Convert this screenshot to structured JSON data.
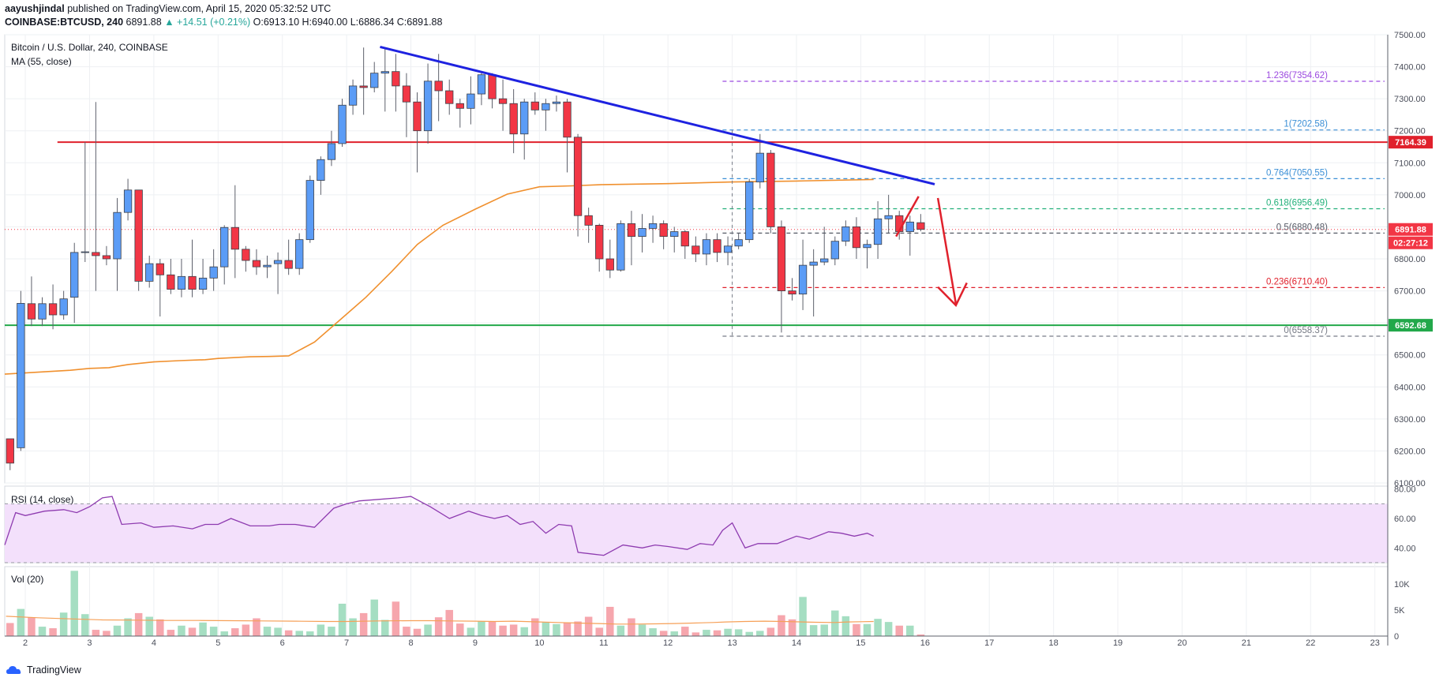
{
  "header": {
    "author": "aayushjindal",
    "published_text": "published on TradingView.com, April 15, 2020 05:32:52 UTC",
    "symbol": "COINBASE:BTCUSD, 240",
    "last": "6891.88",
    "change": "▲ +14.51 (+0.21%)",
    "open": "O:6913.10",
    "high": "H:6940.00",
    "low": "L:6886.34",
    "close": "C:6891.88"
  },
  "footer": {
    "logo_text": "TradingView"
  },
  "colors": {
    "up": "#5b9cf6",
    "down": "#f23645",
    "ma": "#f0902e",
    "trend": "#1e22e0",
    "resistance": "#e0212c",
    "support": "#22a84a",
    "rsi": "#8e3bb0",
    "rsi_band": "#f3e0fb",
    "vol_up": "#a5dec2",
    "vol_down": "#f6a6ad",
    "vol_ma": "#f6a058"
  },
  "chart_data": {
    "type": "candlestick",
    "title": "Bitcoin / U.S. Dollar, 240, COINBASE",
    "ma_label": "MA (55, close)",
    "x_start_day": 1.68,
    "bar_width_days": 0.1667,
    "ylim": [
      6100,
      7500
    ],
    "y_ticks": [
      6100,
      6200,
      6300,
      6400,
      6500,
      6600,
      6700,
      6800,
      6900,
      7000,
      7100,
      7200,
      7300,
      7400,
      7500
    ],
    "y_tick_labels": [
      "6100.00",
      "6200.00",
      "6300.00",
      "6400.00",
      "6500.00",
      "6600.00",
      "6700.00",
      "6800.00",
      "6900.00",
      "7000.00",
      "7100.00",
      "7200.00",
      "7300.00",
      "7400.00",
      "7500.00"
    ],
    "x_ticks": [
      2,
      3,
      4,
      5,
      6,
      7,
      8,
      9,
      10,
      11,
      12,
      13,
      14,
      15,
      16,
      17,
      18,
      19,
      20,
      21,
      22,
      23
    ],
    "x_tick_labels": [
      "2",
      "3",
      "4",
      "5",
      "6",
      "7",
      "8",
      "9",
      "10",
      "11",
      "12",
      "13",
      "14",
      "15",
      "16",
      "17",
      "18",
      "19",
      "20",
      "21",
      "22",
      "23"
    ],
    "xlim": [
      1.68,
      23.2
    ],
    "candles": [
      [
        6238,
        6162,
        6140,
        6225
      ],
      [
        6210,
        6661,
        6200,
        6700
      ],
      [
        6660,
        6612,
        6590,
        6745
      ],
      [
        6612,
        6660,
        6590,
        6680
      ],
      [
        6660,
        6625,
        6580,
        6720
      ],
      [
        6625,
        6675,
        6610,
        6700
      ],
      [
        6680,
        6820,
        6600,
        6850
      ],
      [
        6820,
        6822,
        6790,
        7165
      ],
      [
        6820,
        6810,
        6700,
        7290
      ],
      [
        6810,
        6800,
        6780,
        6840
      ],
      [
        6800,
        6945,
        6700,
        6990
      ],
      [
        6945,
        7015,
        6920,
        7050
      ],
      [
        7015,
        6730,
        6700,
        7015
      ],
      [
        6730,
        6785,
        6710,
        6810
      ],
      [
        6785,
        6750,
        6620,
        6800
      ],
      [
        6750,
        6705,
        6690,
        6800
      ],
      [
        6705,
        6745,
        6680,
        6800
      ],
      [
        6745,
        6705,
        6680,
        6860
      ],
      [
        6705,
        6740,
        6690,
        6800
      ],
      [
        6740,
        6775,
        6700,
        6830
      ],
      [
        6775,
        6898,
        6720,
        6905
      ],
      [
        6898,
        6830,
        6740,
        7030
      ],
      [
        6830,
        6795,
        6760,
        6840
      ],
      [
        6795,
        6775,
        6750,
        6830
      ],
      [
        6775,
        6780,
        6740,
        6810
      ],
      [
        6785,
        6795,
        6690,
        6820
      ],
      [
        6795,
        6770,
        6750,
        6860
      ],
      [
        6770,
        6860,
        6750,
        6880
      ],
      [
        6860,
        7045,
        6850,
        7060
      ],
      [
        7045,
        7110,
        7000,
        7120
      ],
      [
        7110,
        7160,
        7090,
        7200
      ],
      [
        7160,
        7280,
        7150,
        7300
      ],
      [
        7280,
        7340,
        7250,
        7360
      ],
      [
        7340,
        7335,
        7250,
        7460
      ],
      [
        7335,
        7380,
        7320,
        7415
      ],
      [
        7380,
        7385,
        7260,
        7460
      ],
      [
        7385,
        7340,
        7260,
        7440
      ],
      [
        7340,
        7290,
        7180,
        7380
      ],
      [
        7290,
        7200,
        7070,
        7320
      ],
      [
        7200,
        7355,
        7160,
        7410
      ],
      [
        7355,
        7325,
        7230,
        7440
      ],
      [
        7325,
        7285,
        7250,
        7360
      ],
      [
        7285,
        7270,
        7210,
        7300
      ],
      [
        7270,
        7315,
        7220,
        7370
      ],
      [
        7315,
        7375,
        7280,
        7385
      ],
      [
        7375,
        7300,
        7270,
        7380
      ],
      [
        7300,
        7285,
        7200,
        7360
      ],
      [
        7285,
        7190,
        7130,
        7330
      ],
      [
        7190,
        7290,
        7110,
        7300
      ],
      [
        7290,
        7265,
        7250,
        7320
      ],
      [
        7265,
        7285,
        7200,
        7300
      ],
      [
        7285,
        7290,
        7260,
        7310
      ],
      [
        7290,
        7180,
        7070,
        7300
      ],
      [
        7180,
        6935,
        6870,
        7190
      ],
      [
        6935,
        6905,
        6850,
        6960
      ],
      [
        6905,
        6800,
        6760,
        6910
      ],
      [
        6800,
        6765,
        6740,
        6860
      ],
      [
        6765,
        6910,
        6760,
        6920
      ],
      [
        6910,
        6870,
        6780,
        6950
      ],
      [
        6870,
        6895,
        6820,
        6940
      ],
      [
        6895,
        6910,
        6850,
        6935
      ],
      [
        6910,
        6870,
        6830,
        6920
      ],
      [
        6870,
        6885,
        6820,
        6900
      ],
      [
        6885,
        6840,
        6800,
        6890
      ],
      [
        6840,
        6815,
        6790,
        6870
      ],
      [
        6815,
        6860,
        6780,
        6880
      ],
      [
        6860,
        6820,
        6790,
        6880
      ],
      [
        6820,
        6840,
        6780,
        6870
      ],
      [
        6840,
        6860,
        6830,
        6880
      ],
      [
        6860,
        7040,
        6850,
        7050
      ],
      [
        7040,
        7130,
        7020,
        7190
      ],
      [
        7130,
        6900,
        6880,
        7140
      ],
      [
        6900,
        6700,
        6570,
        6920
      ],
      [
        6700,
        6690,
        6670,
        6740
      ],
      [
        6690,
        6780,
        6640,
        6860
      ],
      [
        6780,
        6790,
        6620,
        6830
      ],
      [
        6790,
        6800,
        6780,
        6900
      ],
      [
        6800,
        6855,
        6780,
        6870
      ],
      [
        6855,
        6900,
        6840,
        6920
      ],
      [
        6900,
        6835,
        6800,
        6930
      ],
      [
        6835,
        6845,
        6770,
        6860
      ],
      [
        6845,
        6925,
        6800,
        6980
      ],
      [
        6925,
        6935,
        6880,
        7000
      ],
      [
        6935,
        6885,
        6860,
        6950
      ],
      [
        6885,
        6915,
        6810,
        6935
      ],
      [
        6913,
        6892,
        6886,
        6940
      ]
    ],
    "ma55": [
      6440,
      6446,
      6452,
      6458,
      6460,
      6470,
      6478,
      6482,
      6485,
      6489,
      6494,
      6495,
      6497,
      6540,
      6610,
      6680,
      6760,
      6845,
      6905,
      6955,
      7002,
      7025,
      7028,
      7032,
      7035,
      7040,
      7043,
      7048
    ],
    "ma55_x": [
      1.68,
      2.2,
      2.7,
      3.0,
      3.3,
      3.6,
      4.0,
      4.4,
      4.8,
      5.0,
      5.5,
      5.8,
      6.1,
      6.5,
      6.9,
      7.3,
      7.7,
      8.1,
      8.5,
      9.0,
      9.5,
      10.0,
      10.5,
      11.0,
      12.0,
      13.0,
      14.0,
      15.2
    ],
    "trendline": {
      "x1": 7.52,
      "y1": 7462,
      "x2": 16.15,
      "y2": 7033
    },
    "resistance": {
      "x1": 2.5,
      "y1": 7164.39,
      "value_label": "7164.39"
    },
    "support": {
      "value": 6592.68,
      "value_label": "6592.68"
    },
    "current_price": {
      "value": 6891.88,
      "label": "6891.88",
      "countdown": "02:27:12"
    },
    "fib_levels": [
      {
        "ratio_label": "1.236(7354.62)",
        "value": 7354.62,
        "color": "#9c4ae0"
      },
      {
        "ratio_label": "1(7202.58)",
        "value": 7202.58,
        "color": "#3b8fd6"
      },
      {
        "ratio_label": "0.764(7050.55)",
        "value": 7050.55,
        "color": "#3b8fd6"
      },
      {
        "ratio_label": "0.618(6956.49)",
        "value": 6956.49,
        "color": "#22b07a"
      },
      {
        "ratio_label": "0.5(6880.48)",
        "value": 6880.48,
        "color": "#555a66"
      },
      {
        "ratio_label": "0.236(6710.40)",
        "value": 6710.4,
        "color": "#e0212c"
      },
      {
        "ratio_label": "0(6558.37)",
        "value": 6558.37,
        "color": "#777b86"
      }
    ],
    "fib_x_start": 12.85,
    "projection_arrows": {
      "color": "#e0212c"
    },
    "rsi": {
      "label": "RSI (14, close)",
      "ylim": [
        30,
        82
      ],
      "y_ticks": [
        40,
        60,
        80
      ],
      "y_tick_labels": [
        "40.00",
        "60.00",
        "80.00"
      ],
      "band": [
        30,
        70
      ],
      "x": [
        1.68,
        1.85,
        2.0,
        2.3,
        2.6,
        2.8,
        3.0,
        3.2,
        3.35,
        3.5,
        3.8,
        4.0,
        4.3,
        4.6,
        4.8,
        5.0,
        5.2,
        5.5,
        5.8,
        5.95,
        6.2,
        6.5,
        6.8,
        7.0,
        7.2,
        7.5,
        7.8,
        8.0,
        8.3,
        8.6,
        8.9,
        9.1,
        9.3,
        9.5,
        9.7,
        9.9,
        10.1,
        10.3,
        10.5,
        10.6,
        10.8,
        11.0,
        11.3,
        11.6,
        11.8,
        12.0,
        12.3,
        12.5,
        12.7,
        12.85,
        13.0,
        13.2,
        13.4,
        13.7,
        14.0,
        14.2,
        14.5,
        14.7,
        14.9,
        15.1,
        15.2
      ],
      "values": [
        42,
        64,
        62,
        65,
        66,
        64,
        68,
        74,
        75,
        56,
        57,
        54,
        55,
        53,
        56,
        56,
        60,
        55,
        55,
        56,
        56,
        54,
        67,
        70,
        72,
        73,
        74,
        75,
        68,
        60,
        65,
        62,
        60,
        62,
        56,
        58,
        50,
        56,
        55,
        37,
        36,
        35,
        42,
        40,
        42,
        41,
        39,
        43,
        42,
        52,
        57,
        40,
        43,
        43,
        48,
        46,
        51,
        50,
        48,
        50,
        48
      ]
    },
    "volume": {
      "label": "Vol (20)",
      "ylim": [
        0,
        13000
      ],
      "y_ticks": [
        0,
        5000,
        10000
      ],
      "y_tick_labels": [
        "0",
        "5K",
        "10K"
      ],
      "values": [
        2500,
        5200,
        3600,
        1800,
        1500,
        4500,
        12500,
        4200,
        1200,
        1000,
        2000,
        3400,
        4400,
        3700,
        3200,
        1200,
        2000,
        1600,
        2600,
        1800,
        900,
        1500,
        2200,
        3400,
        1800,
        1600,
        1100,
        1000,
        900,
        2200,
        1800,
        6200,
        3400,
        4400,
        7000,
        3100,
        6600,
        1800,
        1400,
        2200,
        3600,
        5000,
        2400,
        1600,
        2800,
        2800,
        2000,
        2200,
        1700,
        3400,
        2700,
        2300,
        2600,
        2800,
        3700,
        1600,
        5600,
        2000,
        3400,
        2200,
        1500,
        1000,
        900,
        1800,
        700,
        1200,
        1100,
        1400,
        1300,
        800,
        1000,
        1600,
        4000,
        3200,
        7500,
        2100,
        2200,
        4900,
        3800,
        2300,
        2300,
        3300,
        2700,
        2000,
        2000,
        300
      ],
      "ma": [
        3800,
        3500,
        3300,
        3100,
        3050,
        3000,
        3000,
        2950,
        2900,
        2850,
        2800,
        2800,
        2900,
        2950,
        2950,
        2900,
        2850,
        2800,
        2850,
        2700,
        2600,
        2500,
        2400,
        2300,
        2300,
        2350,
        2400,
        2500,
        2600,
        2700,
        2800,
        2850,
        2800,
        2700,
        2650,
        2600,
        2700,
        2750,
        2800
      ],
      "ma_x": [
        1.7,
        2.2,
        2.7,
        3.2,
        3.7,
        4.2,
        4.7,
        5.2,
        5.7,
        6.2,
        6.7,
        7.0,
        7.5,
        8.0,
        8.3,
        8.6,
        9.0,
        9.3,
        9.6,
        10.0,
        10.3,
        10.6,
        10.9,
        11.2,
        11.5,
        11.8,
        12.1,
        12.4,
        12.7,
        12.9,
        13.2,
        13.5,
        13.8,
        14.1,
        14.3,
        14.6,
        14.8,
        15.0,
        15.2
      ]
    }
  }
}
